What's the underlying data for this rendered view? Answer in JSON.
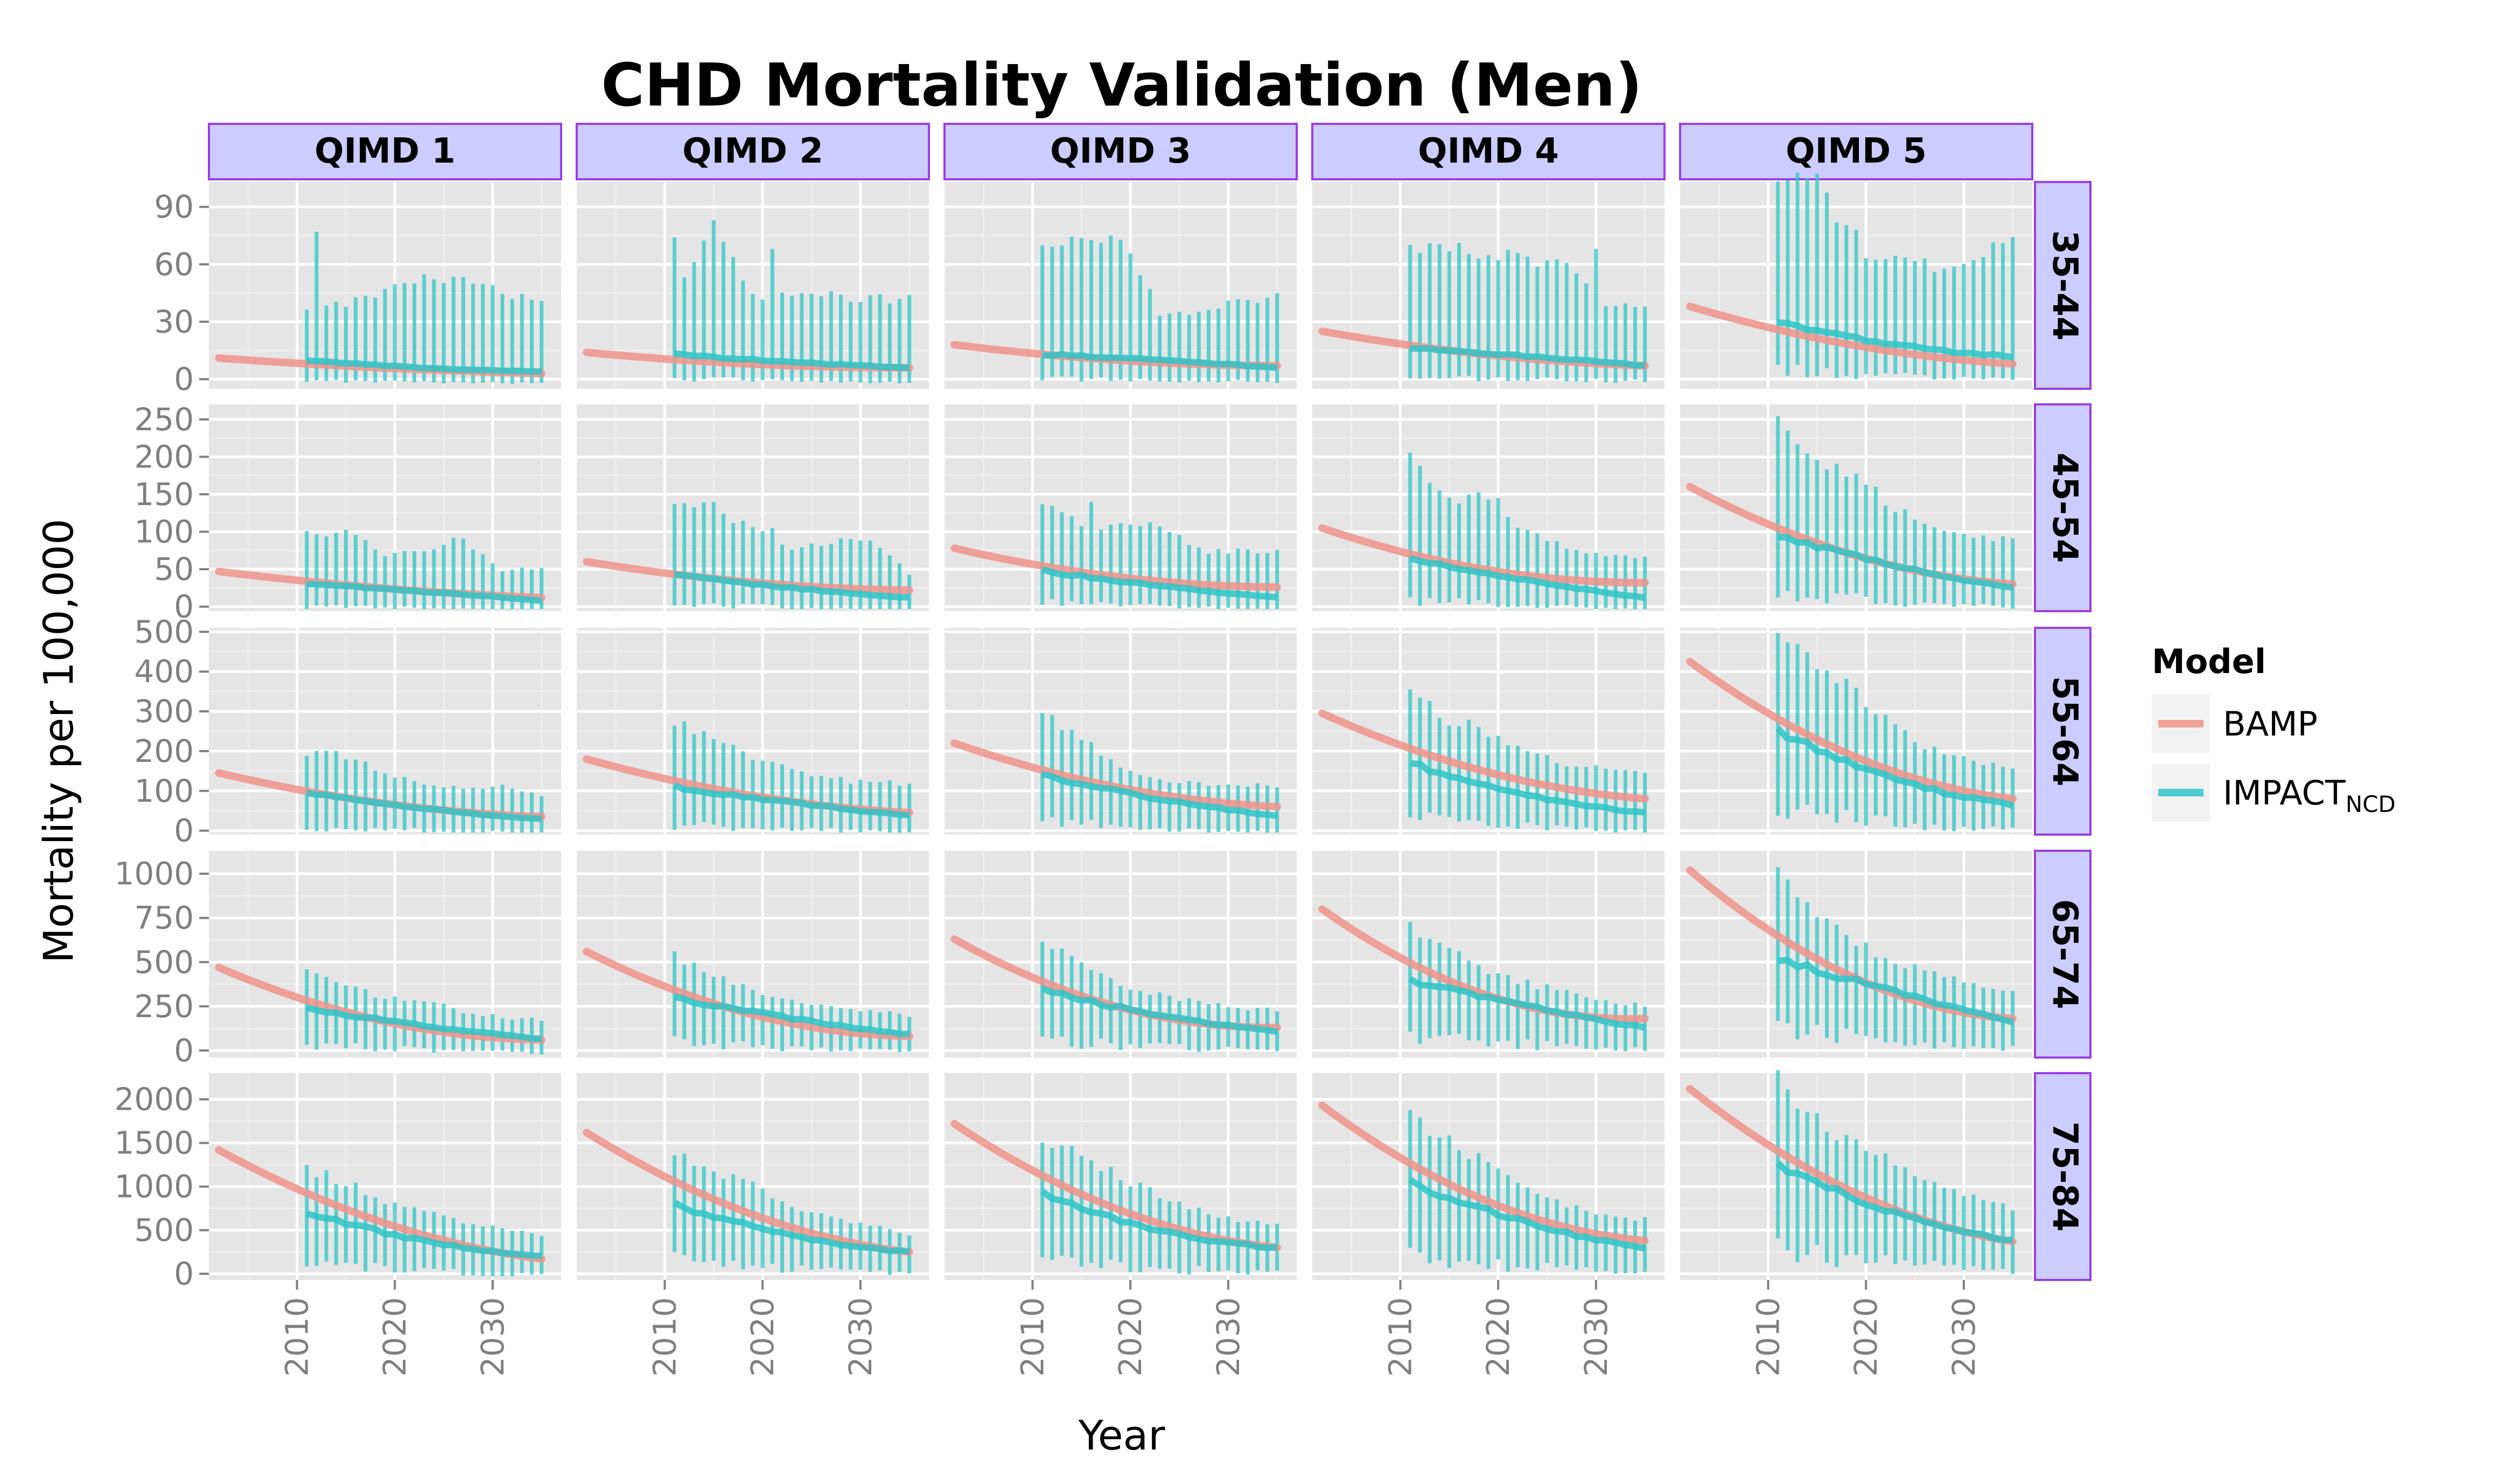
{
  "chart_data": {
    "type": "line",
    "title": "CHD Mortality Validation (Men)",
    "xlabel": "Year",
    "ylabel": "Mortality per 100,000",
    "columns": [
      "QIMD 1",
      "QIMD 2",
      "QIMD 3",
      "QIMD 4",
      "QIMD 5"
    ],
    "rows": [
      "35-44",
      "45-54",
      "55-64",
      "65-74",
      "75-84"
    ],
    "xlim": [
      2001,
      2037
    ],
    "x_ticks": [
      2010,
      2020,
      2030
    ],
    "bamp_years": [
      2002,
      2035
    ],
    "impact_years": [
      2011,
      2035
    ],
    "y_axes": [
      {
        "ylim": [
          -5,
          103
        ],
        "ticks": [
          0,
          30,
          60,
          90
        ]
      },
      {
        "ylim": [
          -6,
          270
        ],
        "ticks": [
          0,
          50,
          100,
          150,
          200,
          250
        ]
      },
      {
        "ylim": [
          -10,
          510
        ],
        "ticks": [
          0,
          100,
          200,
          300,
          400,
          500
        ]
      },
      {
        "ylim": [
          -40,
          1130
        ],
        "ticks": [
          0,
          250,
          500,
          750,
          1000
        ]
      },
      {
        "ylim": [
          -70,
          2300
        ],
        "ticks": [
          0,
          500,
          1000,
          1500,
          2000
        ]
      }
    ],
    "legend": {
      "title": "Model",
      "position": "right",
      "entries": [
        {
          "name": "BAMP",
          "color": "#f0938a"
        },
        {
          "name": "IMPACT",
          "subscript": "NCD",
          "color": "#2ec4c7"
        }
      ]
    },
    "colors": {
      "bamp": "#f0938a",
      "impact": "#2ec4c7",
      "panel_bg": "#e5e5e5",
      "grid_major": "#ffffff",
      "strip_fill": "#ccccff",
      "strip_border": "#9a3ee6"
    },
    "panels": [
      [
        {
          "bamp": [
            11,
            6,
            3
          ],
          "impact": [
            10,
            6,
            4
          ],
          "upper": [
            38,
            40,
            46,
            52,
            53,
            45,
            40
          ],
          "spikes": [
            [
              2012,
              77
            ]
          ]
        },
        {
          "bamp": [
            14,
            8,
            6
          ],
          "impact": [
            13,
            9,
            6
          ],
          "upper": [
            43,
            78,
            44,
            44,
            44,
            42,
            42
          ],
          "spikes": [
            [
              2011,
              74
            ],
            [
              2015,
              83
            ],
            [
              2021,
              68
            ]
          ]
        },
        {
          "bamp": [
            18,
            10,
            7
          ],
          "impact": [
            13,
            10,
            6
          ],
          "upper": [
            73,
            75,
            74,
            35,
            36,
            40,
            43
          ],
          "spikes": [
            [
              2018,
              75
            ]
          ]
        },
        {
          "bamp": [
            25,
            13,
            7
          ],
          "impact": [
            16,
            12,
            7
          ],
          "upper": [
            70,
            68,
            66,
            62,
            61,
            36,
            40
          ],
          "spikes": [
            [
              2030,
              68
            ]
          ]
        },
        {
          "bamp": [
            38,
            18,
            8
          ],
          "impact": [
            30,
            18,
            12
          ],
          "upper": [
            106,
            104,
            67,
            62,
            59,
            65,
            72
          ],
          "spikes": [
            [
              2019,
              78
            ]
          ]
        }
      ],
      [
        {
          "bamp": [
            47,
            25,
            12
          ],
          "impact": [
            30,
            20,
            8
          ],
          "upper": [
            100,
            98,
            70,
            75,
            90,
            50,
            53
          ],
          "spikes": [
            [
              2026,
              92
            ]
          ]
        },
        {
          "bamp": [
            60,
            33,
            22
          ],
          "impact": [
            42,
            25,
            12
          ],
          "upper": [
            140,
            135,
            100,
            80,
            88,
            90,
            45
          ],
          "spikes": [
            [
              2021,
              105
            ]
          ]
        },
        {
          "bamp": [
            78,
            40,
            26
          ],
          "impact": [
            48,
            28,
            12
          ],
          "upper": [
            145,
            105,
            112,
            110,
            75,
            75,
            75
          ],
          "spikes": [
            [
              2016,
              140
            ]
          ]
        },
        {
          "bamp": [
            105,
            50,
            32
          ],
          "impact": [
            65,
            35,
            12
          ],
          "upper": [
            195,
            145,
            145,
            100,
            80,
            65,
            65
          ],
          "spikes": [
            [
              2020,
              145
            ]
          ]
        },
        {
          "bamp": [
            160,
            70,
            30
          ],
          "impact": [
            95,
            55,
            25
          ],
          "upper": [
            240,
            190,
            175,
            130,
            100,
            90,
            90
          ],
          "spikes": [
            [
              2012,
              235
            ]
          ]
        }
      ],
      [
        {
          "bamp": [
            145,
            70,
            35
          ],
          "impact": [
            95,
            55,
            30
          ],
          "upper": [
            195,
            190,
            145,
            120,
            110,
            110,
            90
          ],
          "spikes": []
        },
        {
          "bamp": [
            180,
            90,
            45
          ],
          "impact": [
            110,
            70,
            38
          ],
          "upper": [
            270,
            230,
            180,
            150,
            130,
            120,
            120
          ],
          "spikes": []
        },
        {
          "bamp": [
            220,
            110,
            60
          ],
          "impact": [
            140,
            80,
            38
          ],
          "upper": [
            295,
            230,
            160,
            130,
            120,
            115,
            115
          ],
          "spikes": []
        },
        {
          "bamp": [
            295,
            150,
            80
          ],
          "impact": [
            170,
            90,
            45
          ],
          "upper": [
            345,
            280,
            250,
            190,
            170,
            150,
            145
          ],
          "spikes": []
        },
        {
          "bamp": [
            425,
            190,
            80
          ],
          "impact": [
            250,
            130,
            65
          ],
          "upper": [
            495,
            420,
            350,
            270,
            200,
            180,
            150
          ],
          "spikes": []
        }
      ],
      [
        {
          "bamp": [
            470,
            170,
            60
          ],
          "impact": [
            240,
            140,
            65
          ],
          "upper": [
            470,
            370,
            300,
            290,
            220,
            190,
            170
          ],
          "spikes": []
        },
        {
          "bamp": [
            560,
            210,
            80
          ],
          "impact": [
            300,
            180,
            90
          ],
          "upper": [
            550,
            420,
            340,
            290,
            240,
            220,
            200
          ],
          "spikes": []
        },
        {
          "bamp": [
            630,
            250,
            130
          ],
          "impact": [
            340,
            200,
            110
          ],
          "upper": [
            610,
            480,
            370,
            310,
            270,
            240,
            230
          ],
          "spikes": []
        },
        {
          "bamp": [
            800,
            320,
            180
          ],
          "impact": [
            400,
            250,
            130
          ],
          "upper": [
            700,
            560,
            450,
            380,
            330,
            280,
            250
          ],
          "spikes": []
        },
        {
          "bamp": [
            1020,
            420,
            180
          ],
          "impact": [
            520,
            330,
            160
          ],
          "upper": [
            1000,
            800,
            620,
            500,
            430,
            380,
            330
          ],
          "spikes": []
        }
      ],
      [
        {
          "bamp": [
            1420,
            600,
            170
          ],
          "impact": [
            700,
            380,
            200
          ],
          "upper": [
            1200,
            1050,
            850,
            700,
            600,
            520,
            440
          ],
          "spikes": []
        },
        {
          "bamp": [
            1620,
            700,
            250
          ],
          "impact": [
            800,
            440,
            250
          ],
          "upper": [
            1400,
            1200,
            1000,
            800,
            650,
            550,
            450
          ],
          "spikes": []
        },
        {
          "bamp": [
            1720,
            750,
            300
          ],
          "impact": [
            920,
            500,
            300
          ],
          "upper": [
            1550,
            1350,
            1100,
            900,
            750,
            620,
            550
          ],
          "spikes": []
        },
        {
          "bamp": [
            1930,
            850,
            380
          ],
          "impact": [
            1050,
            580,
            300
          ],
          "upper": [
            1780,
            1500,
            1250,
            1000,
            800,
            680,
            620
          ],
          "spikes": []
        },
        {
          "bamp": [
            2120,
            950,
            370
          ],
          "impact": [
            1250,
            700,
            380
          ],
          "upper": [
            2220,
            1750,
            1500,
            1250,
            1000,
            880,
            760
          ],
          "spikes": []
        }
      ]
    ]
  }
}
